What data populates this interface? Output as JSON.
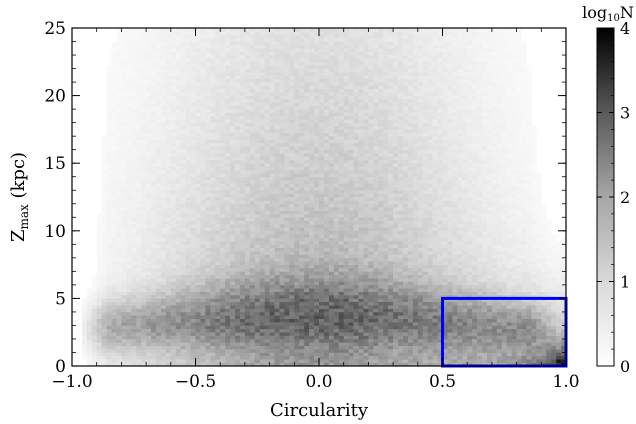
{
  "chart_data": {
    "type": "heatmap",
    "title": "",
    "xlabel": "Circularity",
    "ylabel_main": "Z",
    "ylabel_sub": "max",
    "ylabel_rest": " (kpc)",
    "xlim": [
      -1.0,
      1.0
    ],
    "ylim": [
      0,
      25
    ],
    "x_ticks": [
      -1.0,
      -0.5,
      0.0,
      0.5,
      1.0
    ],
    "x_tick_labels": [
      "−1.0",
      "−0.5",
      "0.0",
      "0.5",
      "1.0"
    ],
    "y_ticks": [
      0,
      5,
      10,
      15,
      20,
      25
    ],
    "y_tick_labels": [
      "0",
      "5",
      "10",
      "15",
      "20",
      "25"
    ],
    "colormap": "greys",
    "colorbar": {
      "label_main": "log",
      "label_sub": "10",
      "label_rest": "N",
      "range": [
        0,
        4
      ],
      "ticks": [
        0,
        1,
        2,
        3,
        4
      ],
      "tick_labels": [
        "0",
        "1",
        "2",
        "3",
        "4"
      ]
    },
    "selection_box": {
      "x": [
        0.5,
        1.0
      ],
      "y": [
        0,
        5
      ],
      "color": "#0000ff"
    }
  }
}
